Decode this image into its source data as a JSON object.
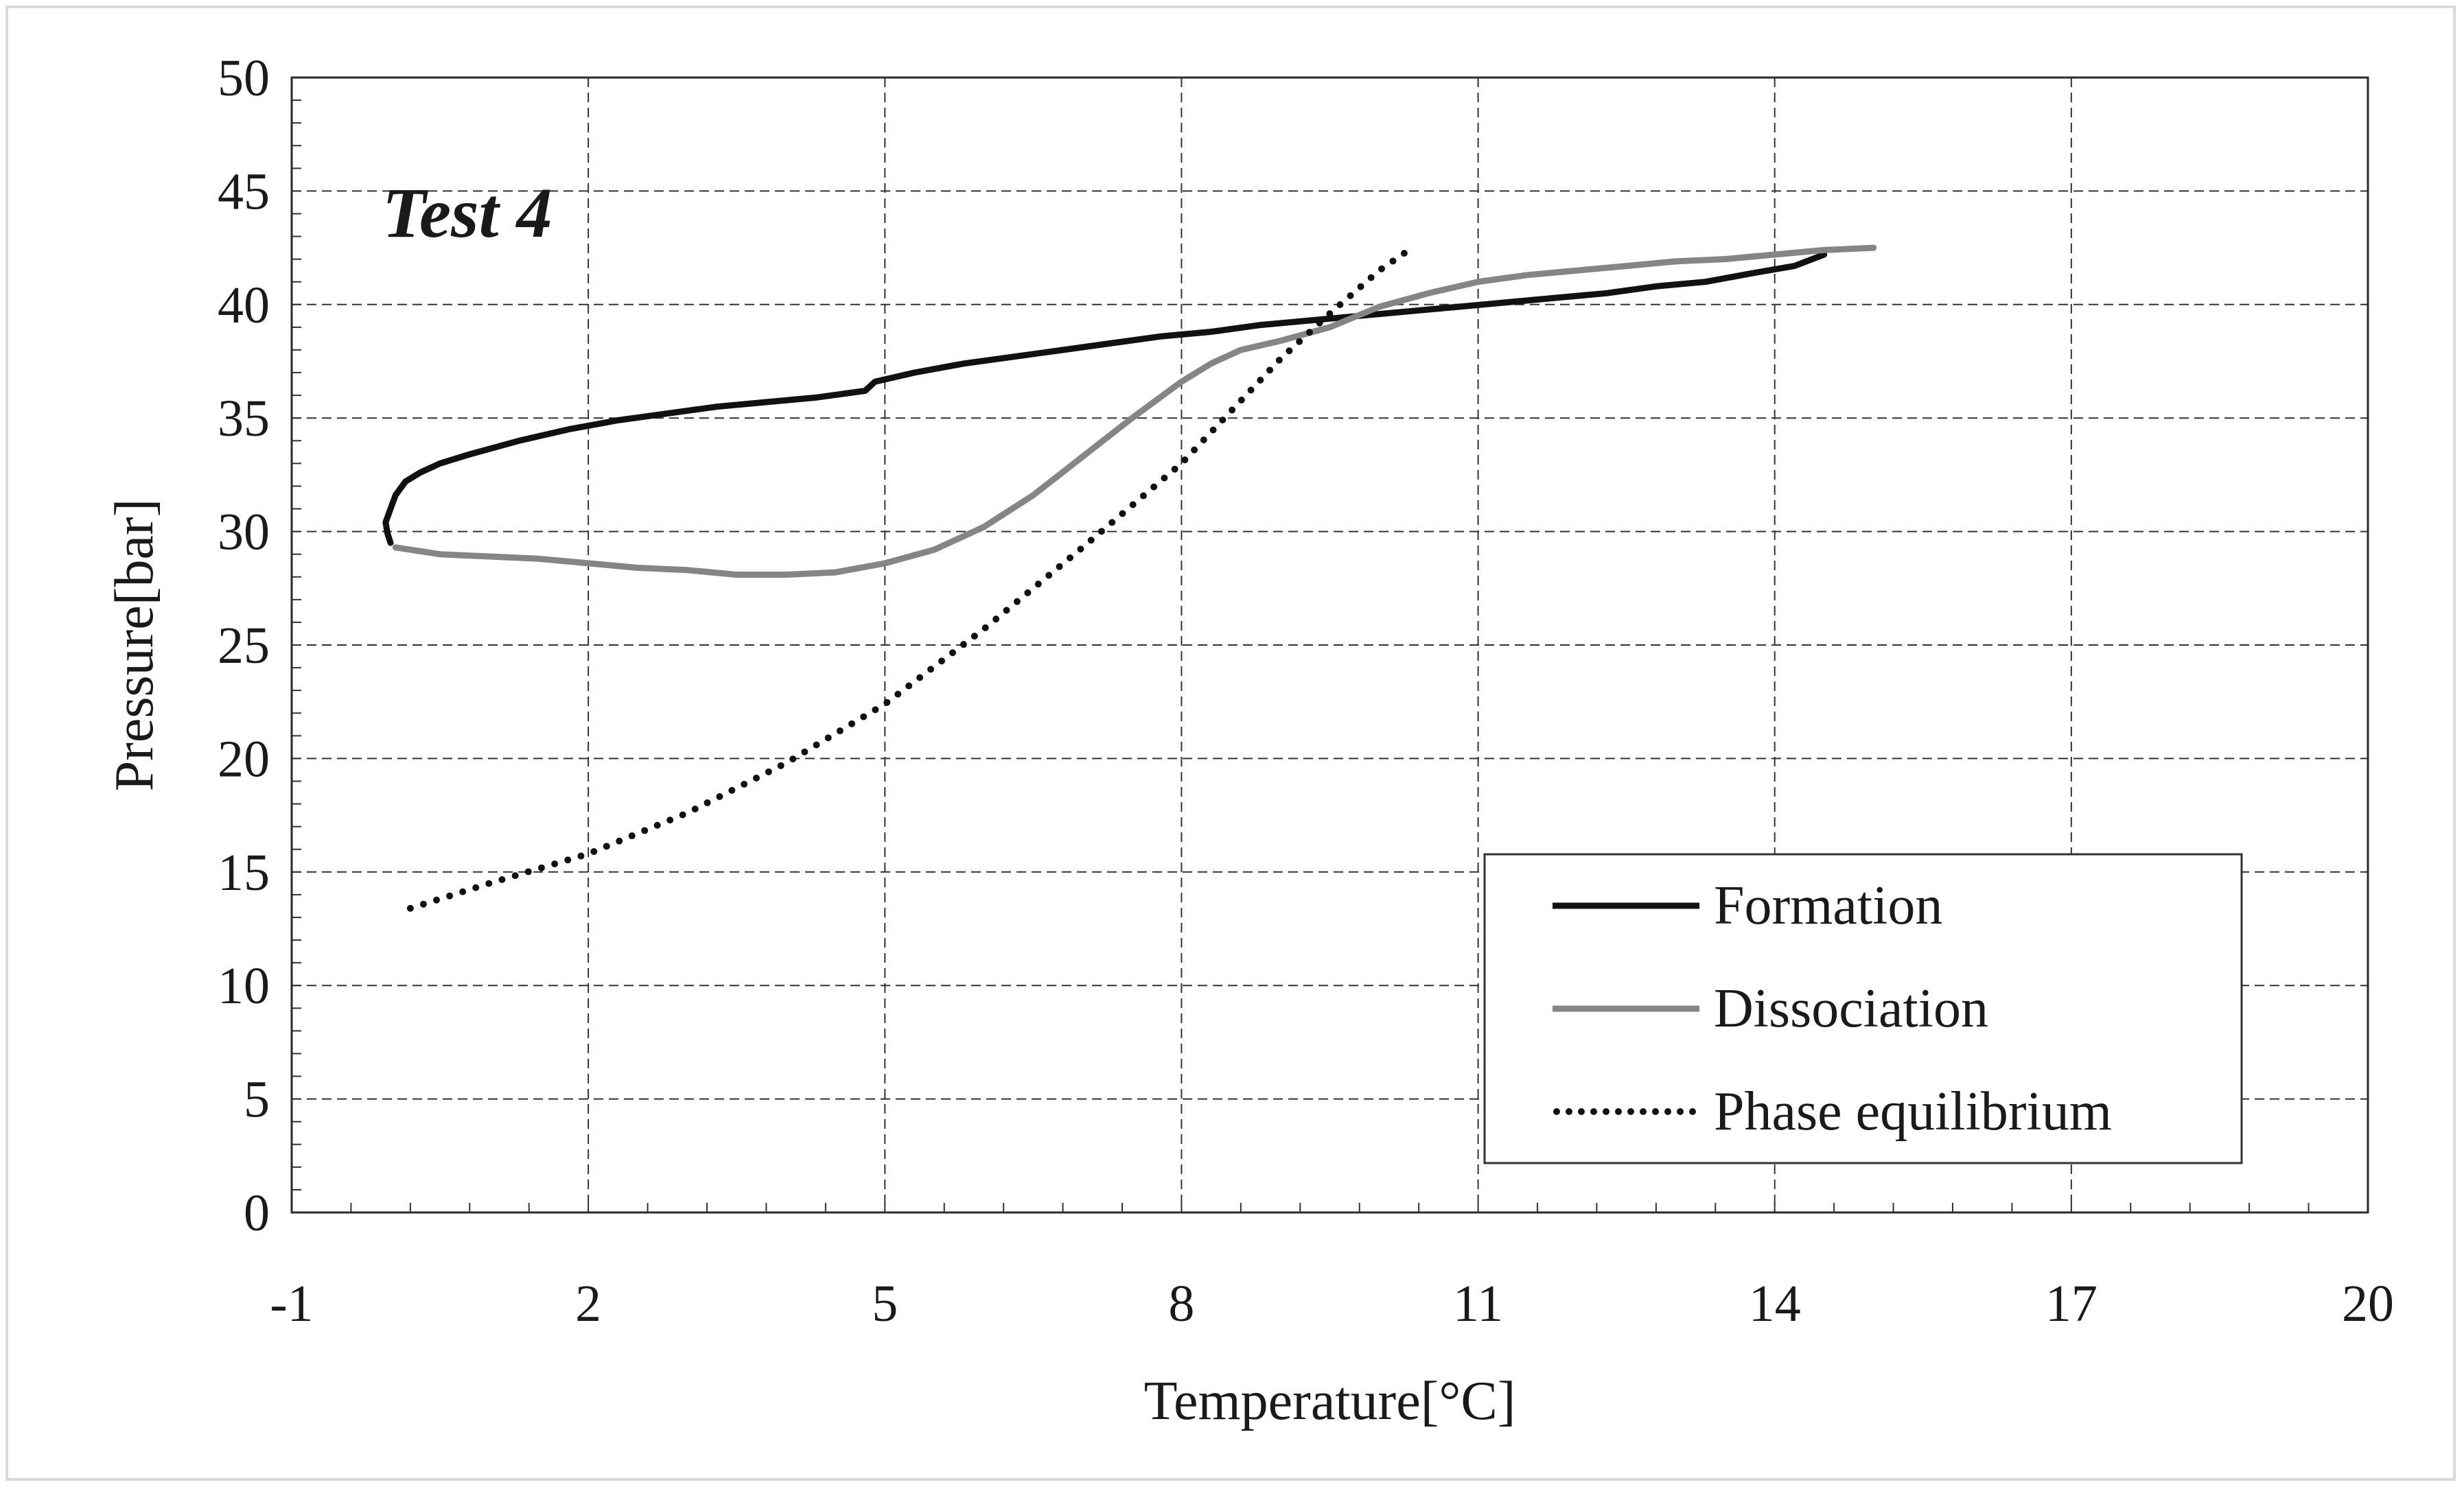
{
  "chart_data": {
    "type": "line",
    "title": "",
    "annotation": "Test 4",
    "xlabel": "Temperature[°C]",
    "ylabel": "Pressure[bar]",
    "xlim": [
      -1,
      20
    ],
    "ylim": [
      0,
      50
    ],
    "x_ticks": [
      -1,
      2,
      5,
      8,
      11,
      14,
      17,
      20
    ],
    "y_ticks": [
      0,
      5,
      10,
      15,
      20,
      25,
      30,
      35,
      40,
      45,
      50
    ],
    "x_minor_step": 0.6,
    "y_minor_step": 1,
    "grid": true,
    "legend_position": "bottom-right",
    "series": [
      {
        "name": "Formation",
        "color": "#111111",
        "style": "solid",
        "x": [
          14.5,
          14.2,
          13.8,
          13.3,
          12.8,
          12.3,
          11.8,
          11.3,
          10.8,
          10.3,
          9.8,
          9.3,
          8.8,
          8.3,
          7.8,
          7.3,
          6.8,
          6.3,
          5.8,
          5.3,
          4.9,
          4.8,
          4.3,
          3.8,
          3.3,
          2.8,
          2.3,
          1.8,
          1.3,
          0.8,
          0.5,
          0.3,
          0.15,
          0.05,
          0.0,
          -0.05,
          -0.03,
          0.0
        ],
        "y": [
          42.2,
          41.7,
          41.4,
          41.0,
          40.8,
          40.5,
          40.3,
          40.1,
          39.9,
          39.7,
          39.5,
          39.3,
          39.1,
          38.8,
          38.6,
          38.3,
          38.0,
          37.7,
          37.4,
          37.0,
          36.6,
          36.2,
          35.9,
          35.7,
          35.5,
          35.2,
          34.9,
          34.5,
          34.0,
          33.4,
          33.0,
          32.6,
          32.2,
          31.6,
          31.0,
          30.4,
          29.9,
          29.5
        ]
      },
      {
        "name": "Dissociation",
        "color": "#858585",
        "style": "solid",
        "x": [
          0.05,
          0.5,
          1.0,
          1.5,
          2.0,
          2.5,
          3.0,
          3.5,
          4.0,
          4.5,
          5.0,
          5.5,
          6.0,
          6.5,
          7.0,
          7.5,
          8.0,
          8.3,
          8.6,
          9.0,
          9.5,
          10.0,
          10.5,
          11.0,
          11.5,
          12.0,
          12.5,
          13.0,
          13.5,
          14.0,
          14.5,
          15.0
        ],
        "y": [
          29.3,
          29.0,
          28.9,
          28.8,
          28.6,
          28.4,
          28.3,
          28.1,
          28.1,
          28.2,
          28.6,
          29.2,
          30.2,
          31.6,
          33.3,
          35.0,
          36.6,
          37.4,
          38.0,
          38.4,
          39.0,
          39.9,
          40.5,
          41.0,
          41.3,
          41.5,
          41.7,
          41.9,
          42.0,
          42.2,
          42.4,
          42.5
        ]
      },
      {
        "name": "Phase equilibrium",
        "color": "#111111",
        "style": "dotted",
        "x": [
          0.2,
          1.0,
          2.0,
          3.0,
          4.0,
          5.0,
          6.0,
          7.0,
          8.0,
          8.5,
          9.0,
          9.5,
          10.0,
          10.3
        ],
        "y": [
          13.4,
          14.5,
          15.8,
          17.6,
          19.8,
          22.4,
          25.7,
          29.3,
          33.0,
          35.3,
          37.6,
          39.6,
          41.5,
          42.4
        ]
      }
    ]
  }
}
